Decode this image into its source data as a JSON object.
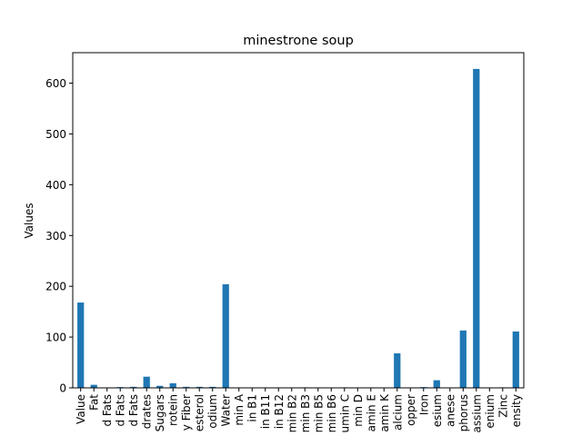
{
  "chart_data": {
    "type": "bar",
    "title": "minestrone soup",
    "xlabel": "",
    "ylabel": "Values",
    "ylim": [
      0,
      660
    ],
    "yticks": [
      0,
      100,
      200,
      300,
      400,
      500,
      600
    ],
    "grid": false,
    "bar_color": "#1f77b4",
    "categories": [
      "Value",
      "Fat",
      "d Fats",
      "d Fats",
      "d Fats",
      "drates",
      "Sugars",
      "rotein",
      "y Fiber",
      "esterol",
      "odium",
      "Water",
      "min A",
      "in B1",
      "in B11",
      "in B12",
      "min B2",
      "min B3",
      "min B5",
      "min B6",
      "umin C",
      "min D",
      "amin E",
      "amin K",
      "alcium",
      "opper",
      "Iron",
      "esium",
      "anese",
      "phorus",
      "assium",
      "enium",
      "Zinc",
      "ensity"
    ],
    "values": [
      168,
      6,
      0.5,
      1.5,
      2,
      22,
      4,
      9,
      2,
      2,
      2,
      204,
      0.2,
      0.1,
      0,
      0.1,
      0.1,
      1,
      0.3,
      0.2,
      1,
      0,
      0.5,
      0.5,
      68,
      0.1,
      1.5,
      15,
      0.3,
      113,
      628,
      0.2,
      1,
      111
    ]
  }
}
